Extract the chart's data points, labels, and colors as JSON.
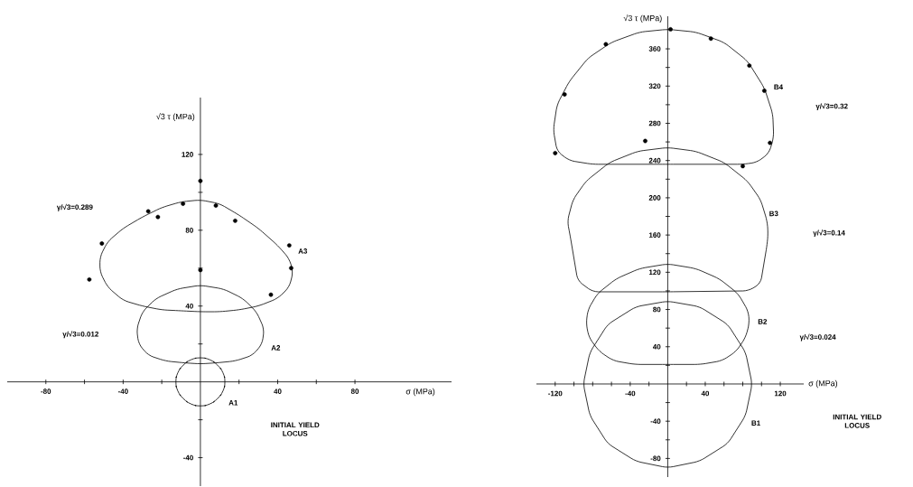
{
  "chart_data": [
    {
      "type": "scatter",
      "marker": "circle",
      "xlabel": "σ (MPa)",
      "ylabel": "√3 τ (MPa)",
      "xlim": [
        -100,
        130
      ],
      "ylim": [
        -55,
        150
      ],
      "xticks": [
        -80,
        {
          "value": -60,
          "label": null
        },
        -40,
        {
          "value": -20,
          "label": null
        },
        {
          "value": 20,
          "label": null
        },
        40,
        {
          "value": 60,
          "label": null
        },
        80
      ],
      "yticks": [
        -40,
        {
          "value": -20,
          "label": null
        },
        {
          "value": 20,
          "label": null
        },
        40,
        {
          "value": 60,
          "label": null
        },
        80,
        {
          "value": 100,
          "label": null
        },
        120
      ],
      "series": [
        {
          "color": "#000000",
          "x": [
            -57.5,
            -22,
            36.5,
            -27,
            -9,
            8,
            18,
            -51,
            46,
            47,
            0,
            0
          ],
          "values": [
            54,
            87,
            46,
            90,
            94,
            93,
            85,
            73,
            72,
            60,
            106,
            59
          ]
        }
      ],
      "annotations": [
        "γ/√3=0.289",
        "γ/√3=0.012",
        "A3",
        "A2",
        "A1",
        "INITIAL YIELD LOCUS"
      ]
    },
    {
      "type": "scatter",
      "marker": "circle",
      "xlabel": "σ (MPa)",
      "ylabel": "√3 τ (MPa)",
      "xlim": [
        -140,
        145
      ],
      "ylim": [
        -100,
        395
      ],
      "xticks": [
        -120,
        {
          "value": -100,
          "label": null
        },
        {
          "value": -80,
          "label": null
        },
        {
          "value": -60,
          "label": null
        },
        -40,
        {
          "value": -20,
          "label": null
        },
        {
          "value": 20,
          "label": null
        },
        40,
        {
          "value": 60,
          "label": null
        },
        {
          "value": 80,
          "label": null
        },
        {
          "value": 100,
          "label": null
        },
        120
      ],
      "yticks": [
        -80,
        {
          "value": -60,
          "label": null
        },
        -40,
        {
          "value": -20,
          "label": null
        },
        {
          "value": 20,
          "label": null
        },
        40,
        {
          "value": 60,
          "label": null
        },
        80,
        {
          "value": 100,
          "label": null
        },
        120,
        {
          "value": 140,
          "label": null
        },
        160,
        {
          "value": 180,
          "label": null
        },
        200,
        {
          "value": 220,
          "label": null
        },
        240,
        {
          "value": 260,
          "label": null
        },
        280,
        {
          "value": 300,
          "label": null
        },
        320,
        {
          "value": 340,
          "label": null
        },
        360
      ],
      "series": [
        {
          "color": "#000000",
          "x": [
            -66,
            46,
            87,
            103,
            -110,
            -120,
            109,
            3,
            -24,
            80
          ],
          "values": [
            365,
            371,
            342,
            315,
            311,
            248,
            259,
            381,
            261,
            234
          ]
        }
      ],
      "annotations": [
        "B4",
        "γ/√3=0.32",
        "B3",
        "γ/√3=0.14",
        "B2",
        "γ/√3=0.024",
        "B1",
        "INITIAL YIELD LOCUS"
      ]
    }
  ]
}
